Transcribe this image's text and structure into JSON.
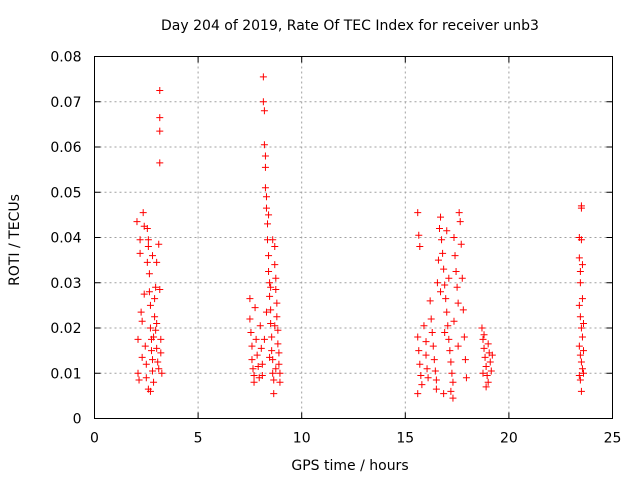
{
  "chart_data": {
    "type": "scatter",
    "title": "Day 204 of 2019, Rate Of TEC Index for receiver unb3",
    "xlabel": "GPS time / hours",
    "ylabel": "ROTI / TECUs",
    "xlim": [
      0,
      25
    ],
    "ylim": [
      0,
      0.08
    ],
    "xticks": [
      0,
      5,
      10,
      15,
      20,
      25
    ],
    "xtick_labels": [
      "0",
      "5",
      "10",
      "15",
      "20",
      "25"
    ],
    "yticks": [
      0,
      0.01,
      0.02,
      0.03,
      0.04,
      0.05,
      0.06,
      0.07,
      0.08
    ],
    "ytick_labels": [
      "0",
      "0.01",
      "0.02",
      "0.03",
      "0.04",
      "0.05",
      "0.06",
      "0.07",
      "0.08"
    ],
    "grid": true,
    "marker": "+",
    "color": "#ff0000",
    "series": [
      {
        "name": "ROTI",
        "points": [
          [
            2.05,
            0.0435
          ],
          [
            2.1,
            0.0175
          ],
          [
            2.1,
            0.01
          ],
          [
            2.15,
            0.0085
          ],
          [
            2.2,
            0.0395
          ],
          [
            2.2,
            0.0365
          ],
          [
            2.25,
            0.0235
          ],
          [
            2.3,
            0.0135
          ],
          [
            2.3,
            0.0215
          ],
          [
            2.35,
            0.0455
          ],
          [
            2.4,
            0.0425
          ],
          [
            2.4,
            0.0275
          ],
          [
            2.45,
            0.016
          ],
          [
            2.5,
            0.012
          ],
          [
            2.5,
            0.009
          ],
          [
            2.55,
            0.0345
          ],
          [
            2.6,
            0.0395
          ],
          [
            2.6,
            0.038
          ],
          [
            2.65,
            0.032
          ],
          [
            2.65,
            0.028
          ],
          [
            2.7,
            0.025
          ],
          [
            2.7,
            0.02
          ],
          [
            2.75,
            0.0175
          ],
          [
            2.75,
            0.015
          ],
          [
            2.8,
            0.013
          ],
          [
            2.8,
            0.0105
          ],
          [
            2.85,
            0.008
          ],
          [
            2.6,
            0.0065
          ],
          [
            2.7,
            0.006
          ],
          [
            2.9,
            0.0225
          ],
          [
            2.9,
            0.0265
          ],
          [
            2.95,
            0.0195
          ],
          [
            3.0,
            0.0345
          ],
          [
            3.0,
            0.0155
          ],
          [
            3.05,
            0.0125
          ],
          [
            3.1,
            0.011
          ],
          [
            3.15,
            0.0725
          ],
          [
            3.15,
            0.0665
          ],
          [
            3.15,
            0.0635
          ],
          [
            3.15,
            0.0565
          ],
          [
            3.15,
            0.0285
          ],
          [
            3.2,
            0.0175
          ],
          [
            3.2,
            0.0145
          ],
          [
            3.25,
            0.01
          ],
          [
            2.95,
            0.029
          ],
          [
            2.55,
            0.042
          ],
          [
            2.8,
            0.036
          ],
          [
            3.1,
            0.0385
          ],
          [
            3.0,
            0.021
          ],
          [
            2.85,
            0.018
          ],
          [
            7.5,
            0.0265
          ],
          [
            7.5,
            0.022
          ],
          [
            7.55,
            0.019
          ],
          [
            7.6,
            0.016
          ],
          [
            7.6,
            0.013
          ],
          [
            7.65,
            0.011
          ],
          [
            7.7,
            0.0095
          ],
          [
            7.7,
            0.008
          ],
          [
            7.75,
            0.0245
          ],
          [
            7.8,
            0.0175
          ],
          [
            7.85,
            0.014
          ],
          [
            7.9,
            0.0115
          ],
          [
            7.95,
            0.009
          ],
          [
            8.0,
            0.0205
          ],
          [
            8.05,
            0.0155
          ],
          [
            8.1,
            0.012
          ],
          [
            8.15,
            0.0755
          ],
          [
            8.15,
            0.07
          ],
          [
            8.2,
            0.068
          ],
          [
            8.2,
            0.0605
          ],
          [
            8.25,
            0.058
          ],
          [
            8.25,
            0.0555
          ],
          [
            8.3,
            0.049
          ],
          [
            8.3,
            0.0465
          ],
          [
            8.35,
            0.043
          ],
          [
            8.35,
            0.0395
          ],
          [
            8.4,
            0.036
          ],
          [
            8.4,
            0.0325
          ],
          [
            8.45,
            0.03
          ],
          [
            8.45,
            0.027
          ],
          [
            8.5,
            0.024
          ],
          [
            8.5,
            0.021
          ],
          [
            8.55,
            0.018
          ],
          [
            8.55,
            0.015
          ],
          [
            8.6,
            0.013
          ],
          [
            8.6,
            0.01
          ],
          [
            8.65,
            0.0085
          ],
          [
            8.65,
            0.0055
          ],
          [
            8.7,
            0.038
          ],
          [
            8.7,
            0.034
          ],
          [
            8.75,
            0.031
          ],
          [
            8.75,
            0.0285
          ],
          [
            8.8,
            0.0255
          ],
          [
            8.8,
            0.0225
          ],
          [
            8.85,
            0.0195
          ],
          [
            8.85,
            0.0165
          ],
          [
            8.9,
            0.0145
          ],
          [
            8.9,
            0.012
          ],
          [
            8.95,
            0.01
          ],
          [
            8.95,
            0.008
          ],
          [
            8.25,
            0.051
          ],
          [
            8.4,
            0.045
          ],
          [
            8.6,
            0.0395
          ],
          [
            8.5,
            0.029
          ],
          [
            8.3,
            0.0235
          ],
          [
            8.7,
            0.0205
          ],
          [
            8.2,
            0.0175
          ],
          [
            8.45,
            0.0135
          ],
          [
            8.75,
            0.011
          ],
          [
            8.1,
            0.0095
          ],
          [
            15.6,
            0.0455
          ],
          [
            15.65,
            0.0405
          ],
          [
            15.7,
            0.038
          ],
          [
            15.6,
            0.018
          ],
          [
            15.65,
            0.015
          ],
          [
            15.7,
            0.012
          ],
          [
            15.75,
            0.0095
          ],
          [
            15.8,
            0.0075
          ],
          [
            15.6,
            0.0055
          ],
          [
            15.9,
            0.0205
          ],
          [
            16.0,
            0.017
          ],
          [
            16.0,
            0.014
          ],
          [
            16.05,
            0.011
          ],
          [
            16.1,
            0.009
          ],
          [
            16.2,
            0.026
          ],
          [
            16.25,
            0.022
          ],
          [
            16.3,
            0.019
          ],
          [
            16.35,
            0.016
          ],
          [
            16.4,
            0.013
          ],
          [
            16.45,
            0.0105
          ],
          [
            16.5,
            0.0085
          ],
          [
            16.5,
            0.0065
          ],
          [
            16.55,
            0.03
          ],
          [
            16.6,
            0.035
          ],
          [
            16.65,
            0.042
          ],
          [
            16.7,
            0.0445
          ],
          [
            16.75,
            0.0395
          ],
          [
            16.8,
            0.0365
          ],
          [
            16.85,
            0.033
          ],
          [
            16.9,
            0.0295
          ],
          [
            16.95,
            0.0265
          ],
          [
            17.0,
            0.0235
          ],
          [
            17.05,
            0.0205
          ],
          [
            17.1,
            0.0175
          ],
          [
            17.15,
            0.015
          ],
          [
            17.2,
            0.0125
          ],
          [
            17.25,
            0.01
          ],
          [
            17.3,
            0.008
          ],
          [
            17.3,
            0.0045
          ],
          [
            17.35,
            0.04
          ],
          [
            17.4,
            0.036
          ],
          [
            17.45,
            0.0325
          ],
          [
            17.5,
            0.029
          ],
          [
            17.55,
            0.0255
          ],
          [
            17.6,
            0.0455
          ],
          [
            17.65,
            0.0435
          ],
          [
            17.7,
            0.0385
          ],
          [
            17.75,
            0.031
          ],
          [
            17.8,
            0.024
          ],
          [
            17.85,
            0.018
          ],
          [
            17.9,
            0.013
          ],
          [
            17.95,
            0.009
          ],
          [
            16.7,
            0.028
          ],
          [
            16.9,
            0.019
          ],
          [
            17.1,
            0.031
          ],
          [
            17.35,
            0.0215
          ],
          [
            17.55,
            0.016
          ],
          [
            17.2,
            0.006
          ],
          [
            16.85,
            0.0055
          ],
          [
            17.0,
            0.0415
          ],
          [
            18.7,
            0.02
          ],
          [
            18.75,
            0.0175
          ],
          [
            18.8,
            0.0155
          ],
          [
            18.85,
            0.0135
          ],
          [
            18.9,
            0.0115
          ],
          [
            18.95,
            0.0095
          ],
          [
            19.0,
            0.008
          ],
          [
            19.05,
            0.0145
          ],
          [
            19.1,
            0.0125
          ],
          [
            19.15,
            0.0105
          ],
          [
            18.8,
            0.0185
          ],
          [
            19.0,
            0.0165
          ],
          [
            18.9,
            0.007
          ],
          [
            19.2,
            0.014
          ],
          [
            18.75,
            0.01
          ],
          [
            23.4,
            0.04
          ],
          [
            23.4,
            0.0355
          ],
          [
            23.45,
            0.0325
          ],
          [
            23.45,
            0.03
          ],
          [
            23.5,
            0.047
          ],
          [
            23.5,
            0.0465
          ],
          [
            23.5,
            0.0395
          ],
          [
            23.55,
            0.034
          ],
          [
            23.55,
            0.0265
          ],
          [
            23.4,
            0.025
          ],
          [
            23.45,
            0.0225
          ],
          [
            23.5,
            0.02
          ],
          [
            23.55,
            0.018
          ],
          [
            23.4,
            0.016
          ],
          [
            23.45,
            0.014
          ],
          [
            23.5,
            0.0125
          ],
          [
            23.55,
            0.011
          ],
          [
            23.4,
            0.0095
          ],
          [
            23.45,
            0.0085
          ],
          [
            23.5,
            0.006
          ],
          [
            23.6,
            0.021
          ],
          [
            23.6,
            0.015
          ],
          [
            23.6,
            0.01
          ]
        ]
      }
    ]
  }
}
